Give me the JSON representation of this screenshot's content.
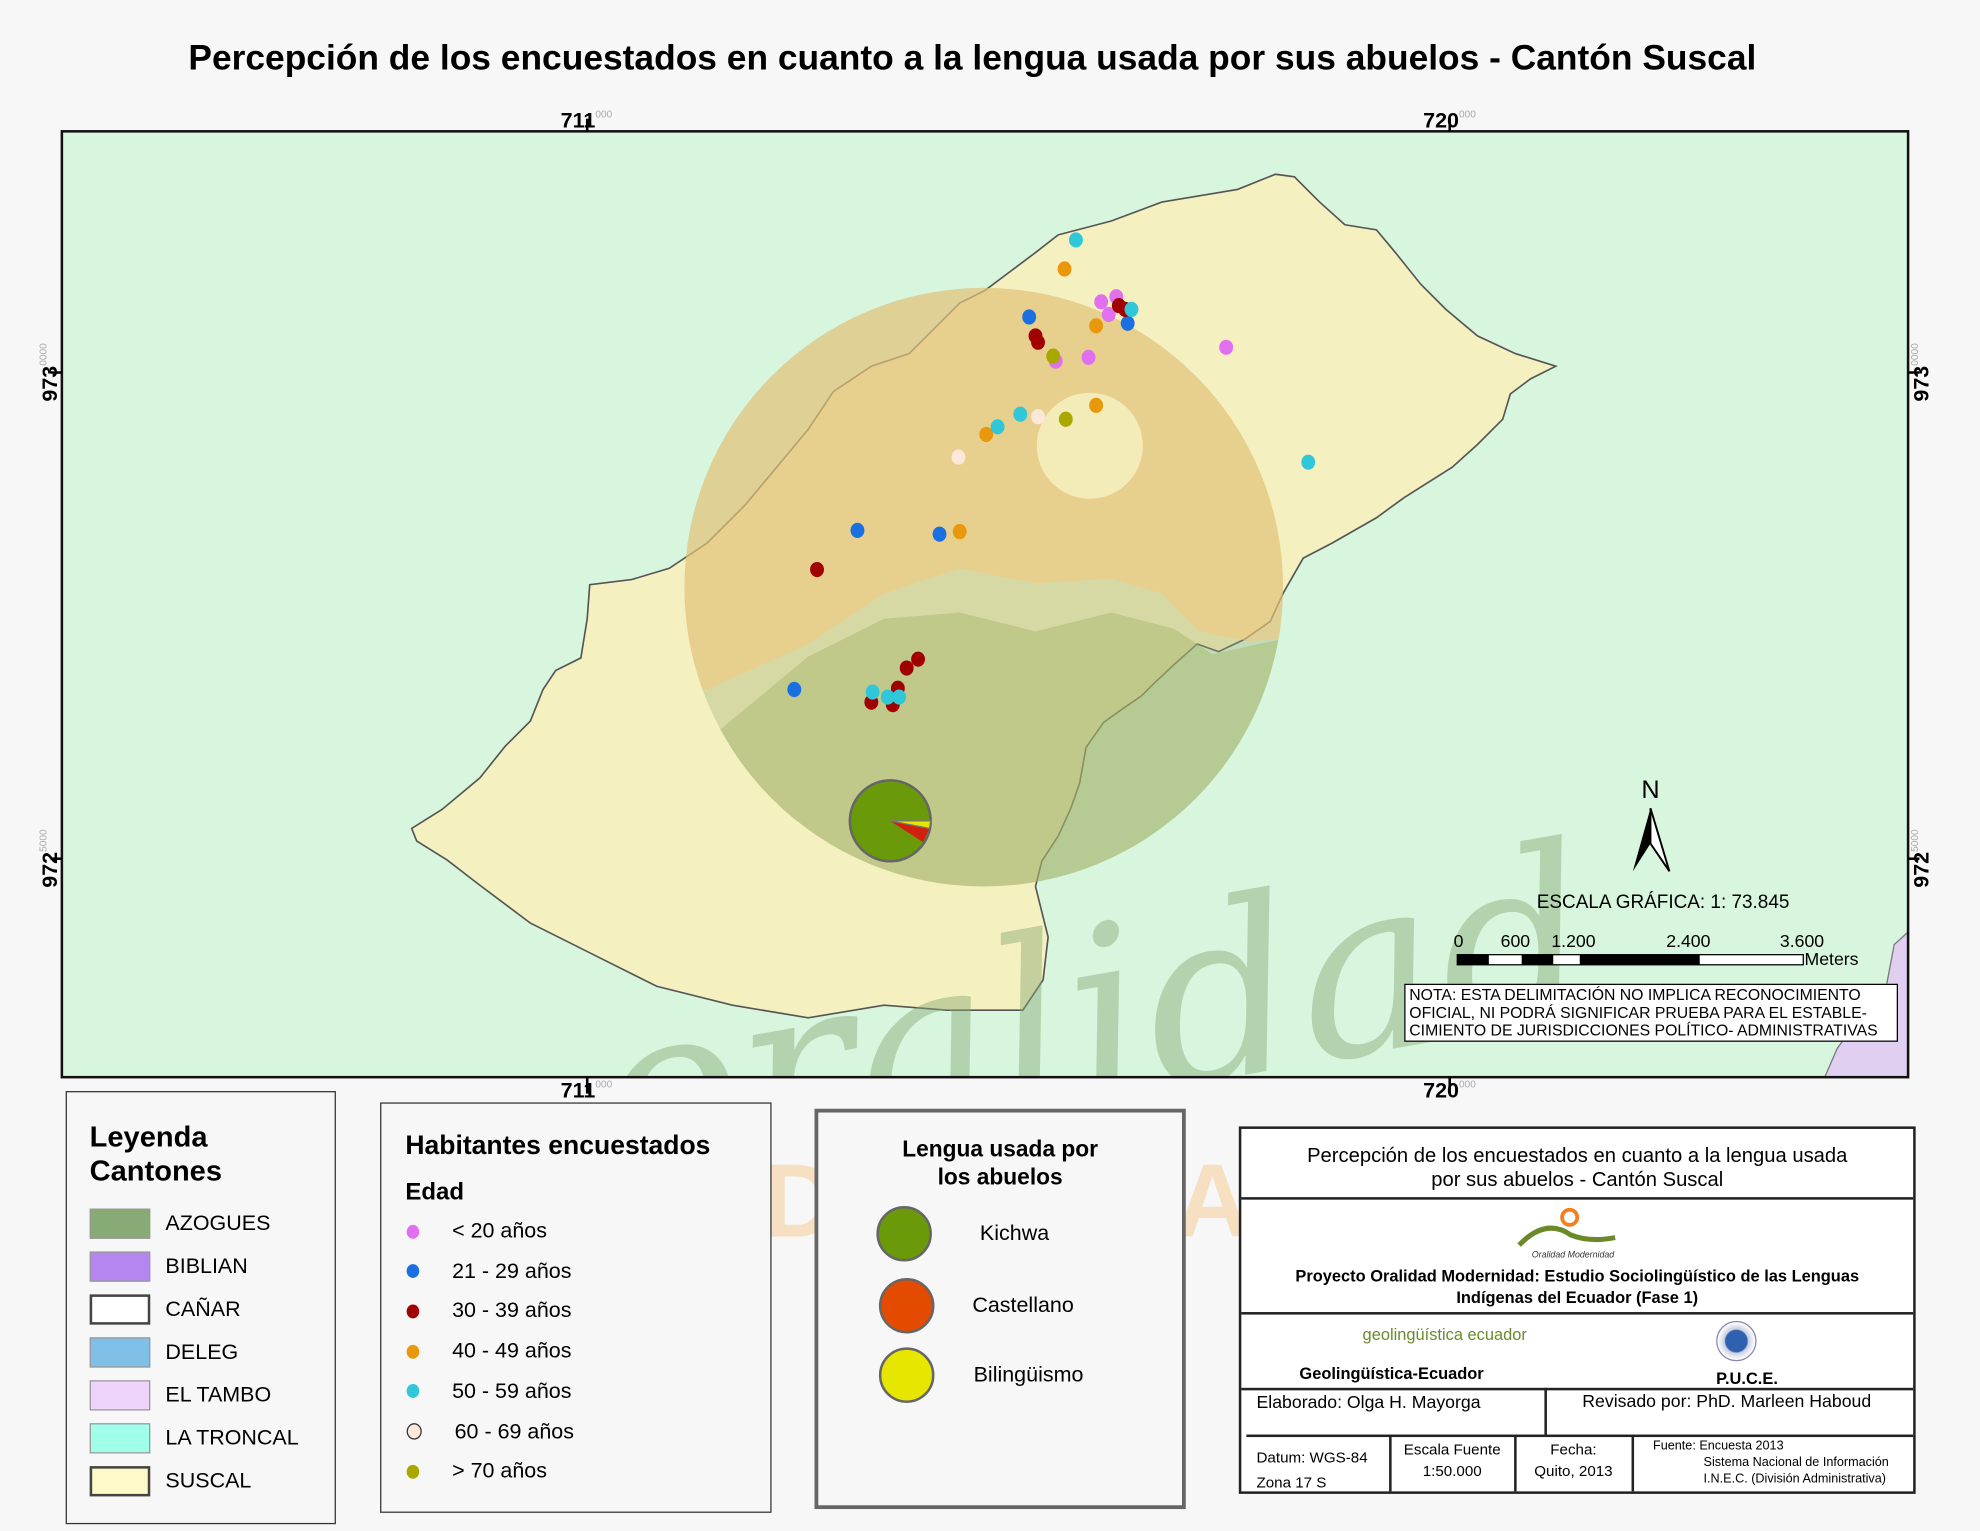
{
  "title": "Percepción de los encuestados en cuanto a la lengua usada por sus abuelos - Cantón Suscal",
  "grid": {
    "x_labels": [
      {
        "main": "711",
        "sup": "000"
      },
      {
        "main": "720",
        "sup": "000"
      }
    ],
    "y_labels": [
      {
        "main": "973",
        "sup": "0000"
      },
      {
        "main": "972",
        "sup": "5000"
      }
    ]
  },
  "colors": {
    "background": "#d8f5de",
    "suscal": "#f5f0c0",
    "azogues": "#88aa77",
    "el_tambo": "#e8ccf5",
    "kichwa": "#6a9a0a",
    "castellano": "#e34c00",
    "bilinguismo": "#e6e600"
  },
  "survey_points_by_age": [
    {
      "age": "< 20 años",
      "color": "#e070f0"
    },
    {
      "age": "21 - 29 años",
      "color": "#1a70e0"
    },
    {
      "age": "30 - 39 años",
      "color": "#a00000"
    },
    {
      "age": "40 - 49 años",
      "color": "#e8980a"
    },
    {
      "age": "50 - 59 años",
      "color": "#30c8d8"
    },
    {
      "age": "60 - 69 años",
      "color": "#fbe8d8"
    },
    {
      "age": "> 70 años",
      "color": "#a8a800"
    }
  ],
  "pie_chart": {
    "kichwa": 0.94,
    "castellano": 0.045,
    "bilinguismo": 0.015
  },
  "north_arrow": "N",
  "scale": {
    "text": "ESCALA GRÁFICA: 1: 73.845",
    "ticks": [
      "0",
      "600",
      "1.200",
      "2.400",
      "3.600"
    ],
    "unit": "Meters"
  },
  "nota": "NOTA: ESTA DELIMITACIÓN NO IMPLICA  RECONOCIMIENTO OFICIAL, NI PODRÁ SIGNIFICAR  PRUEBA PARA EL ESTABLE- CIMIENTO DE  JURISDICCIONES POLÍTICO- ADMINISTRATIVAS",
  "watermark": {
    "line1": "oralidad",
    "line2": "MODERNIDAD"
  },
  "legend_cantones": {
    "title1": "Leyenda",
    "title2": "Cantones",
    "items": [
      {
        "label": "AZOGUES",
        "color": "#88aa77"
      },
      {
        "label": "BIBLIAN",
        "color": "#b585f0"
      },
      {
        "label": "CAÑAR",
        "color": "#ffffff"
      },
      {
        "label": "DELEG",
        "color": "#80c0e8"
      },
      {
        "label": "EL TAMBO",
        "color": "#eed3fb"
      },
      {
        "label": "LA TRONCAL",
        "color": "#a0ffe8"
      },
      {
        "label": "SUSCAL",
        "color": "#fff8c8"
      }
    ]
  },
  "legend_habitantes": {
    "title": "Habitantes encuestados",
    "subtitle": "Edad",
    "items": [
      "< 20 años",
      "21 - 29 años",
      "30 - 39 años",
      "40 - 49 años",
      "50 - 59 años",
      "60 - 69 años",
      "> 70 años"
    ]
  },
  "legend_lengua": {
    "title1": "Lengua usada por",
    "title2": "los abuelos",
    "items": [
      "Kichwa",
      "Castellano",
      "Bilingüismo"
    ]
  },
  "title_block": {
    "title1": "Percepción de los encuestados en cuanto a la lengua usada",
    "title2": "por sus abuelos - Cantón Suscal",
    "logo_text": "Oralidad Modernidad",
    "project1": "Proyecto Oralidad Modernidad: Estudio Sociolingüístico de las Lenguas",
    "project2": "Indígenas del Ecuador  (Fase 1)",
    "geo_logo": "geolingüística ecuador",
    "geo": "Geolingüística-Ecuador",
    "puce": "P.U.C.E.",
    "elaborado": "Elaborado: Olga H. Mayorga",
    "revisado": "Revisado por: PhD. Marleen Haboud",
    "datum1": "Datum: WGS-84",
    "datum2": "Zona 17 S",
    "escala1": "Escala Fuente",
    "escala2": "1:50.000",
    "fecha1": "Fecha:",
    "fecha2": "Quito, 2013",
    "fuente1": "Fuente: Encuesta 2013",
    "fuente2": "Sistema Nacional de Información",
    "fuente3": "I.N.E.C. (División Administrativa)"
  }
}
